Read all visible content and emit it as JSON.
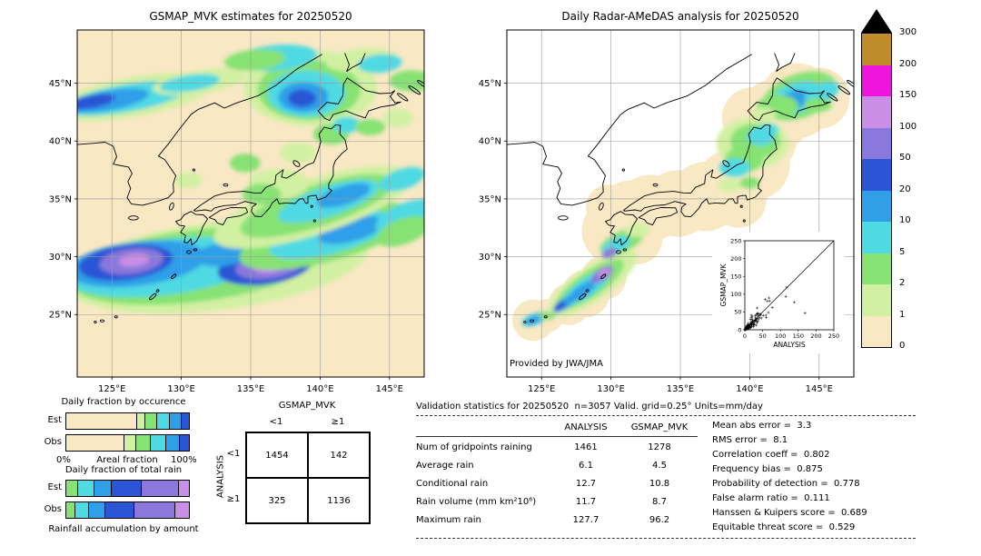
{
  "palette": {
    "background": "#ffffff",
    "land_nodata": "#f8e8c4",
    "grid": "#9a9a9a",
    "coast": "#000000",
    "rain_levels": [
      0,
      1,
      2,
      5,
      10,
      20,
      50,
      100,
      150,
      200,
      300
    ],
    "rain_colors": [
      "#f8e8c4",
      "#d2f0a2",
      "#86e273",
      "#4fd9e2",
      "#2f9fe8",
      "#2b55d5",
      "#8a78dc",
      "#c98ee6",
      "#ef15dc",
      "#c08c2c"
    ],
    "over_color": "#000000"
  },
  "chart_data": [
    {
      "name": "gsmap-estimates-map",
      "type": "heatmap",
      "title": "GSMAP_MVK estimates for 20250520",
      "units": "mm/day",
      "lon_range": [
        122.5,
        147.5
      ],
      "lat_range": [
        19.6,
        49.6
      ],
      "lon_ticks": [
        {
          "v": 125,
          "label": "125°E"
        },
        {
          "v": 130,
          "label": "130°E"
        },
        {
          "v": 135,
          "label": "135°E"
        },
        {
          "v": 140,
          "label": "140°E"
        },
        {
          "v": 145,
          "label": "145°E"
        }
      ],
      "lat_ticks": [
        {
          "v": 45,
          "label": "45°N"
        },
        {
          "v": 40,
          "label": "40°N"
        },
        {
          "v": 35,
          "label": "35°N"
        },
        {
          "v": 30,
          "label": "30°N"
        },
        {
          "v": 25,
          "label": "25°N"
        }
      ]
    },
    {
      "name": "radar-amedas-analysis-map",
      "type": "heatmap",
      "title": "Daily Radar-AMeDAS analysis for 20250520",
      "credit": "Provided by JWA/JMA",
      "units": "mm/day",
      "lon_range": [
        122.5,
        147.5
      ],
      "lat_range": [
        19.6,
        49.6
      ],
      "lon_ticks": [
        {
          "v": 125,
          "label": "125°E"
        },
        {
          "v": 130,
          "label": "130°E"
        },
        {
          "v": 135,
          "label": "135°E"
        },
        {
          "v": 140,
          "label": "140°E"
        },
        {
          "v": 145,
          "label": "145°E"
        }
      ],
      "lat_ticks": [
        {
          "v": 45,
          "label": "45°N"
        },
        {
          "v": 40,
          "label": "40°N"
        },
        {
          "v": 35,
          "label": "35°N"
        },
        {
          "v": 30,
          "label": "30°N"
        },
        {
          "v": 25,
          "label": "25°N"
        }
      ]
    },
    {
      "name": "rain-rate-colorbar",
      "type": "heatmap",
      "units": "mm/day",
      "labels": [
        "300",
        "200",
        "150",
        "100",
        "50",
        "20",
        "10",
        "5",
        "2",
        "1",
        "0"
      ]
    },
    {
      "name": "gridpoint-scatter",
      "type": "scatter",
      "xlabel": "ANALYSIS",
      "ylabel": "GSMAP_MVK",
      "xlim": [
        0,
        250
      ],
      "ylim": [
        0,
        250
      ],
      "x_ticks": [
        0,
        50,
        100,
        150,
        200,
        250
      ],
      "y_ticks": [
        0,
        50,
        100,
        150,
        200,
        250
      ],
      "identity_line": true,
      "marker": "+",
      "note": "Dense cluster of gridpoint pairs below ~100 mm/day along the 1:1 line"
    },
    {
      "name": "daily-fraction-by-occurrence",
      "type": "bar",
      "title": "Daily fraction by occurence",
      "orientation": "horizontal-stacked",
      "axis": {
        "left": "0%",
        "center": "Areal fraction",
        "right": "100%"
      },
      "series": [
        {
          "name": "Est",
          "segments": [
            {
              "c": 0,
              "p": 57
            },
            {
              "c": 1,
              "p": 7
            },
            {
              "c": 2,
              "p": 9
            },
            {
              "c": 3,
              "p": 11
            },
            {
              "c": 4,
              "p": 9
            },
            {
              "c": 5,
              "p": 7
            }
          ]
        },
        {
          "name": "Obs",
          "segments": [
            {
              "c": 0,
              "p": 47
            },
            {
              "c": 1,
              "p": 9
            },
            {
              "c": 2,
              "p": 12
            },
            {
              "c": 3,
              "p": 13
            },
            {
              "c": 4,
              "p": 11
            },
            {
              "c": 5,
              "p": 8
            }
          ]
        }
      ]
    },
    {
      "name": "daily-fraction-of-total-rain",
      "type": "bar",
      "title": "Daily fraction of total rain",
      "caption": "Rainfall accumulation by amount",
      "orientation": "horizontal-stacked",
      "series": [
        {
          "name": "Est",
          "segments": [
            {
              "c": 2,
              "p": 9
            },
            {
              "c": 3,
              "p": 13
            },
            {
              "c": 4,
              "p": 14
            },
            {
              "c": 5,
              "p": 25
            },
            {
              "c": 6,
              "p": 30
            },
            {
              "c": 7,
              "p": 9
            }
          ]
        },
        {
          "name": "Obs",
          "segments": [
            {
              "c": 2,
              "p": 7
            },
            {
              "c": 3,
              "p": 11
            },
            {
              "c": 4,
              "p": 13
            },
            {
              "c": 5,
              "p": 24
            },
            {
              "c": 6,
              "p": 33
            },
            {
              "c": 7,
              "p": 12
            }
          ]
        }
      ]
    },
    {
      "name": "contingency-table",
      "type": "table",
      "col_group": "GSMAP_MVK",
      "row_group": "ANALYSIS",
      "col_labels": [
        "<1",
        "≥1"
      ],
      "row_labels": [
        "<1",
        "≥1"
      ],
      "values": [
        [
          "1454",
          "142"
        ],
        [
          "325",
          "1136"
        ]
      ]
    },
    {
      "name": "validation-statistics",
      "type": "table",
      "header": "Validation statistics for 20250520  n=3057 Valid. grid=0.25° Units=mm/day",
      "columns": [
        "ANALYSIS",
        "GSMAP_MVK"
      ],
      "rows": [
        {
          "label": "Num of gridpoints raining",
          "analysis": "1461",
          "gsmap": "1278"
        },
        {
          "label": "Average rain",
          "analysis": "6.1",
          "gsmap": "4.5"
        },
        {
          "label": "Conditional rain",
          "analysis": "12.7",
          "gsmap": "10.8"
        },
        {
          "label": "Rain volume (mm km²10⁶)",
          "analysis": "11.7",
          "gsmap": "8.7"
        },
        {
          "label": "Maximum rain",
          "analysis": "127.7",
          "gsmap": "96.2"
        }
      ],
      "scores": [
        {
          "label": "Mean abs error",
          "value": "3.3"
        },
        {
          "label": "RMS error",
          "value": "8.1"
        },
        {
          "label": "Correlation coeff",
          "value": "0.802"
        },
        {
          "label": "Frequency bias",
          "value": "0.875"
        },
        {
          "label": "Probability of detection",
          "value": "0.778"
        },
        {
          "label": "False alarm ratio",
          "value": "0.111"
        },
        {
          "label": "Hanssen & Kuipers score",
          "value": "0.689"
        },
        {
          "label": "Equitable threat score",
          "value": "0.529"
        }
      ]
    }
  ]
}
